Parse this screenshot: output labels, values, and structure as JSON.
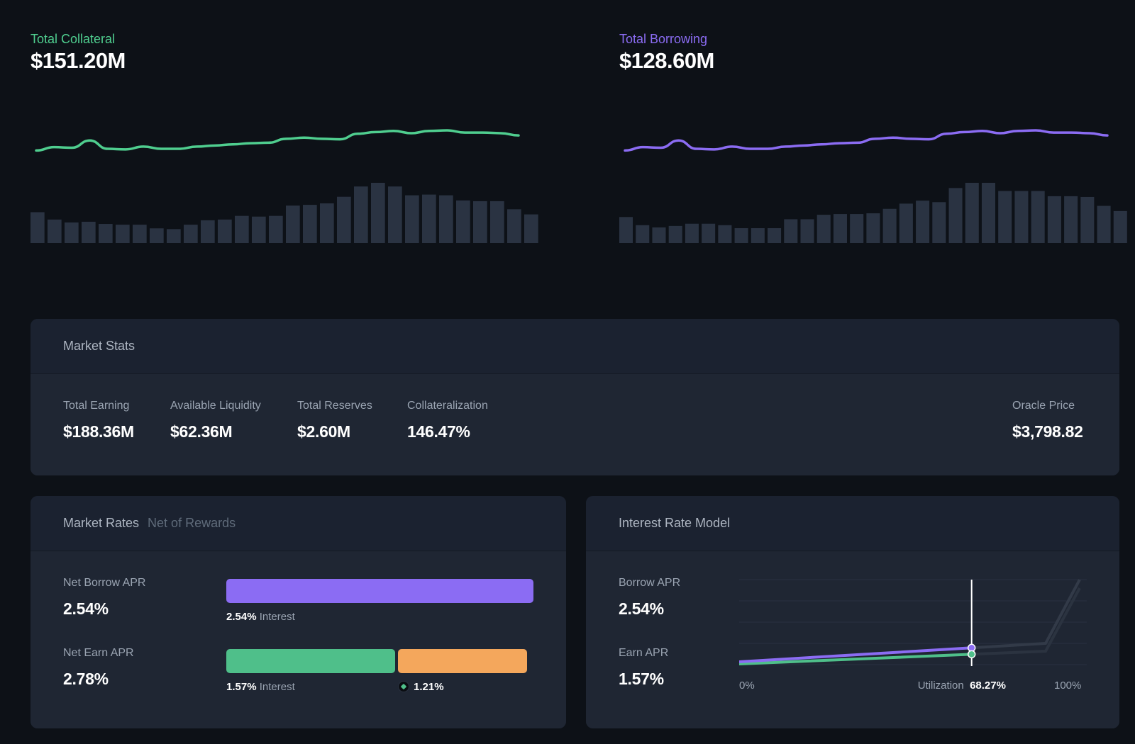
{
  "overview": {
    "collateral": {
      "label": "Total Collateral",
      "value": "$151.20M",
      "color": "#4fce8f",
      "line": [
        2,
        8,
        7,
        20,
        5,
        4,
        9,
        5,
        5,
        9,
        11,
        13,
        15,
        16,
        23,
        25,
        23,
        22,
        32,
        35,
        37,
        33,
        37,
        38,
        34,
        34,
        33,
        29
      ],
      "bars": [
        42,
        32,
        28,
        29,
        26,
        25,
        25,
        20,
        19,
        25,
        31,
        32,
        37,
        36,
        37,
        51,
        52,
        54,
        63,
        77,
        82,
        77,
        65,
        66,
        65,
        58,
        57,
        57,
        46,
        39
      ]
    },
    "borrowing": {
      "label": "Total Borrowing",
      "value": "$128.60M",
      "color": "#8b6cf3",
      "line": [
        2,
        8,
        7,
        20,
        5,
        4,
        9,
        5,
        5,
        9,
        11,
        13,
        15,
        16,
        23,
        25,
        23,
        22,
        32,
        35,
        37,
        33,
        37,
        38,
        34,
        34,
        33,
        29
      ],
      "bars": [
        35,
        24,
        21,
        23,
        26,
        26,
        24,
        20,
        20,
        20,
        32,
        32,
        38,
        39,
        39,
        40,
        46,
        53,
        57,
        55,
        74,
        81,
        81,
        70,
        70,
        70,
        63,
        63,
        62,
        50,
        43
      ]
    }
  },
  "market_stats": {
    "title": "Market Stats",
    "items": [
      {
        "label": "Total Earning",
        "value": "$188.36M"
      },
      {
        "label": "Available Liquidity",
        "value": "$62.36M"
      },
      {
        "label": "Total Reserves",
        "value": "$2.60M"
      },
      {
        "label": "Collateralization",
        "value": "146.47%"
      }
    ],
    "oracle": {
      "label": "Oracle Price",
      "value": "$3,798.82"
    }
  },
  "market_rates": {
    "title": "Market Rates",
    "subtitle": "Net of Rewards",
    "borrow": {
      "label": "Net Borrow APR",
      "value": "2.54%",
      "interest_value": "2.54%",
      "interest_word": "Interest"
    },
    "earn": {
      "label": "Net Earn APR",
      "value": "2.78%",
      "interest_value": "1.57%",
      "interest_word": "Interest",
      "reward_value": "1.21%",
      "interest_share": 0.565
    },
    "colors": {
      "borrow": "#8b6cf3",
      "interest": "#4fbf8a",
      "reward": "#f4a75c"
    }
  },
  "interest_model": {
    "title": "Interest Rate Model",
    "borrow": {
      "label": "Borrow APR",
      "value": "2.54%"
    },
    "earn": {
      "label": "Earn APR",
      "value": "1.57%"
    },
    "axis_start": "0%",
    "axis_end": "100%",
    "utilization_label": "Utilization",
    "utilization_value": "68.27%",
    "utilization": 0.6827,
    "kink": 0.9
  }
}
